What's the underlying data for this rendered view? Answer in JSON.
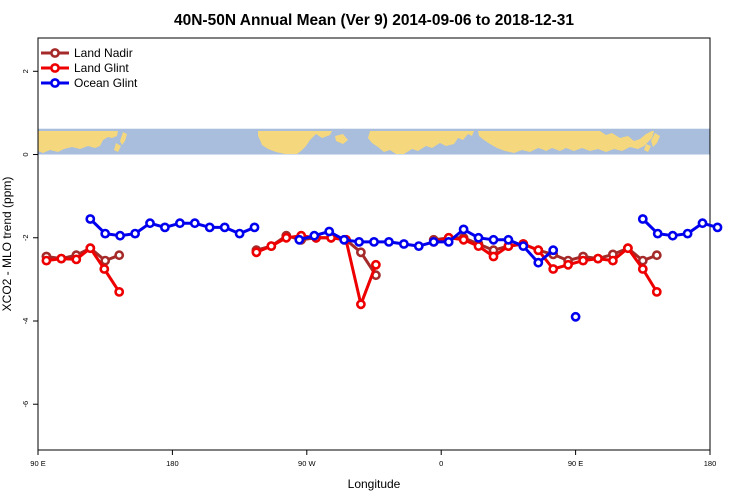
{
  "chart_data": {
    "type": "line",
    "title": "40N-50N Annual Mean (Ver 9)   2014-09-06 to 2018-12-31",
    "xlabel": "Longitude",
    "ylabel": "XCO2 - MLO trend (ppm)",
    "xlim": [
      90,
      450
    ],
    "ylim": [
      -7.1,
      2.8
    ],
    "x_ticks": [
      {
        "value": 90,
        "label": "90 E"
      },
      {
        "value": 162,
        "label": "180"
      },
      {
        "value": 234,
        "label": "90 W"
      },
      {
        "value": 306,
        "label": "0"
      },
      {
        "value": 378,
        "label": "90 E"
      },
      {
        "value": 450,
        "label": "180"
      }
    ],
    "y_ticks": [
      {
        "value": 2,
        "label": "2"
      },
      {
        "value": 0,
        "label": "0"
      },
      {
        "value": -2,
        "label": "-2"
      },
      {
        "value": -4,
        "label": "-4"
      },
      {
        "value": -6,
        "label": "-6"
      }
    ],
    "grid": false,
    "legend_position": "top-left",
    "map_strip": {
      "y_range": [
        0,
        0.62
      ],
      "ocean_color": "#a8bedc",
      "land_color": "#f5d77e"
    },
    "series": [
      {
        "name": "Land Nadir",
        "color": "#a52a2a",
        "segments": [
          [
            [
              94.5,
              -2.45
            ],
            [
              102.5,
              -2.5
            ],
            [
              110.5,
              -2.42
            ],
            [
              118,
              -2.25
            ],
            [
              126,
              -2.55
            ],
            [
              133.5,
              -2.42
            ]
          ],
          [
            [
              207,
              -2.3
            ],
            [
              215,
              -2.2
            ],
            [
              223,
              -1.95
            ],
            [
              231,
              -2.05
            ],
            [
              239,
              -2.0
            ],
            [
              247,
              -2.0
            ],
            [
              255,
              -2.05
            ],
            [
              263,
              -2.35
            ],
            [
              271,
              -2.9
            ]
          ],
          [
            [
              302,
              -2.05
            ],
            [
              310,
              -2.0
            ],
            [
              318,
              -2.0
            ],
            [
              326,
              -2.15
            ],
            [
              334,
              -2.3
            ],
            [
              342,
              -2.2
            ],
            [
              350,
              -2.15
            ],
            [
              358,
              -2.3
            ],
            [
              366,
              -2.4
            ],
            [
              374,
              -2.55
            ],
            [
              382,
              -2.45
            ],
            [
              390,
              -2.5
            ],
            [
              398,
              -2.4
            ],
            [
              406,
              -2.25
            ],
            [
              414,
              -2.55
            ],
            [
              421.5,
              -2.42
            ]
          ]
        ]
      },
      {
        "name": "Land Glint",
        "color": "#ee0000",
        "segments": [
          [
            [
              94.5,
              -2.55
            ],
            [
              102.5,
              -2.5
            ],
            [
              110.5,
              -2.52
            ],
            [
              118,
              -2.25
            ],
            [
              125.5,
              -2.75
            ],
            [
              133.5,
              -3.3
            ]
          ],
          [
            [
              207,
              -2.35
            ],
            [
              215,
              -2.2
            ],
            [
              223,
              -2.0
            ],
            [
              231,
              -1.95
            ],
            [
              239,
              -2.0
            ],
            [
              247,
              -2.0
            ],
            [
              255,
              -2.05
            ],
            [
              263,
              -3.6
            ],
            [
              271,
              -2.65
            ]
          ],
          [
            [
              302,
              -2.1
            ],
            [
              310,
              -2.0
            ],
            [
              318,
              -2.05
            ],
            [
              326,
              -2.2
            ],
            [
              334,
              -2.45
            ],
            [
              342,
              -2.2
            ],
            [
              350,
              -2.15
            ],
            [
              358,
              -2.3
            ],
            [
              366,
              -2.75
            ],
            [
              374,
              -2.65
            ],
            [
              382,
              -2.55
            ],
            [
              390,
              -2.5
            ],
            [
              398,
              -2.55
            ],
            [
              406,
              -2.25
            ],
            [
              414,
              -2.75
            ],
            [
              421.5,
              -3.3
            ]
          ]
        ]
      },
      {
        "name": "Ocean Glint",
        "color": "#0000ee",
        "segments": [
          [
            [
              118,
              -1.55
            ],
            [
              126,
              -1.9
            ],
            [
              134,
              -1.95
            ],
            [
              142,
              -1.9
            ],
            [
              150,
              -1.65
            ],
            [
              158,
              -1.75
            ],
            [
              166,
              -1.65
            ],
            [
              174,
              -1.65
            ],
            [
              182,
              -1.75
            ],
            [
              190,
              -1.75
            ],
            [
              198,
              -1.9
            ],
            [
              206,
              -1.75
            ]
          ],
          [
            [
              230,
              -2.05
            ],
            [
              238,
              -1.95
            ],
            [
              246,
              -1.85
            ],
            [
              254,
              -2.05
            ],
            [
              262,
              -2.1
            ],
            [
              270,
              -2.1
            ],
            [
              278,
              -2.1
            ],
            [
              286,
              -2.15
            ],
            [
              294,
              -2.2
            ],
            [
              302,
              -2.1
            ],
            [
              310,
              -2.1
            ],
            [
              318,
              -1.8
            ],
            [
              326,
              -2.0
            ],
            [
              334,
              -2.05
            ],
            [
              342,
              -2.05
            ],
            [
              350,
              -2.2
            ],
            [
              358,
              -2.6
            ],
            [
              366,
              -2.3
            ]
          ],
          [
            [
              378,
              -3.9
            ]
          ],
          [
            [
              414,
              -1.55
            ],
            [
              422,
              -1.9
            ],
            [
              430,
              -1.95
            ],
            [
              438,
              -1.9
            ],
            [
              446,
              -1.65
            ],
            [
              454,
              -1.75
            ]
          ]
        ]
      }
    ]
  }
}
